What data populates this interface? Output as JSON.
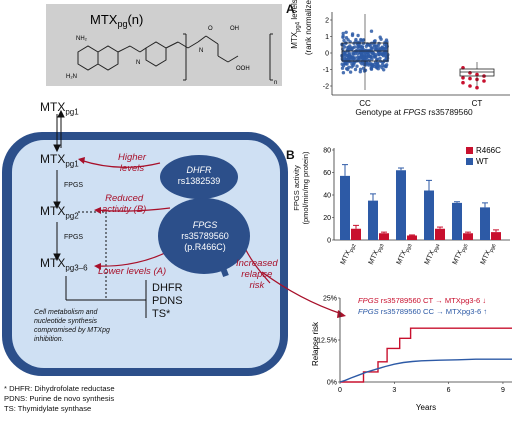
{
  "molecule": {
    "label": "MTX",
    "sub": "pg",
    "suffix": "(n)",
    "subscript_n": "n"
  },
  "pathway": {
    "mtx_outer": "MTX",
    "mtx_outer_sub": "pg1",
    "mtx1": "MTX",
    "mtx1_sub": "pg1",
    "fpgs1": "FPGS",
    "mtx2": "MTX",
    "mtx2_sub": "pg2",
    "fpgs2": "FPGS",
    "mtx3": "MTX",
    "mtx3_sub": "pg3–6",
    "enzymes": [
      "DHFR",
      "PDNS",
      "TS*"
    ],
    "metabolism_note": [
      "Cell metabolism and",
      "nucleotide synthesis",
      "compromised by MTXpg",
      "inhibition."
    ],
    "dhfr_ellipse": [
      "DHFR",
      "rs1382539"
    ],
    "fpgs_ellipse": [
      "FPGS",
      "rs35789560",
      "(p.R466C)"
    ],
    "higher_levels": [
      "Higher",
      "levels"
    ],
    "reduced_activity": [
      "Reduced",
      "activity (B)"
    ],
    "lower_levels": "Lower levels (A)",
    "increased_relapse": [
      "Increased",
      "relapse",
      "risk"
    ]
  },
  "footnotes": [
    "* DHFR: Dihydrofolate reductase",
    "PDNS: Purine de novo synthesis",
    "TS: Thymidylate synthase"
  ],
  "panel_a": {
    "letter": "A",
    "ylabel_main": "MTX",
    "ylabel_sub": "pg4",
    "ylabel_rest": " levels",
    "ylabel_line2": "(rank normalized)",
    "xlabel_prefix": "Genotype at ",
    "xlabel_gene": "FPGS",
    "xlabel_snp": " rs35789560",
    "categories": [
      "CC",
      "CT"
    ],
    "ticks": [
      "2",
      "1",
      "0",
      "-1",
      "-2"
    ],
    "colors": {
      "cc": "#2d5aa6",
      "ct": "#c8102e"
    }
  },
  "panel_b": {
    "letter": "B",
    "ylabel": [
      "FPGS activity",
      "(pmol/min/mg protein)"
    ],
    "ticks": [
      "80",
      "60",
      "40",
      "20",
      "0"
    ],
    "legend": [
      {
        "name": "R466C",
        "color": "#c8102e"
      },
      {
        "name": "WT",
        "color": "#2d5aa6"
      }
    ],
    "categories": [
      {
        "main": "MTX",
        "sub": "pg2"
      },
      {
        "main": "MTX",
        "sub": "pg3"
      },
      {
        "main": "MTX",
        "sub": "pg3"
      },
      {
        "main": "MTX",
        "sub": "pg4"
      },
      {
        "main": "MTX",
        "sub": "pg5"
      },
      {
        "main": "MTX",
        "sub": "pg6"
      }
    ]
  },
  "panel_c": {
    "ylabel": "Relapse risk",
    "xlabel": "Years",
    "yticks": [
      "25%",
      "12.5%",
      "0%"
    ],
    "xticks": [
      "0",
      "3",
      "6",
      "9"
    ],
    "legend_ct": {
      "gene": "FPGS",
      "text": " rs35789560 CT → MTXpg3-6 ↓"
    },
    "legend_cc": {
      "gene": "FPGS",
      "text": " rs35789560 CC → MTXpg3-6 ↑"
    }
  },
  "chart_data": [
    {
      "type": "bar",
      "title": "",
      "ylabel": "FPGS activity (pmol/min/mg protein)",
      "categories": [
        "MTXpg2",
        "MTXpg3",
        "MTXpg3",
        "MTXpg4",
        "MTXpg5",
        "MTXpg6"
      ],
      "ylim": [
        0,
        80
      ],
      "series": [
        {
          "name": "WT",
          "values": [
            57,
            35,
            62,
            44,
            33,
            29
          ],
          "errors": [
            10,
            6,
            2,
            9,
            1,
            4
          ]
        },
        {
          "name": "R466C",
          "values": [
            10,
            6,
            4,
            10,
            6,
            7
          ],
          "errors": [
            3,
            1,
            0.5,
            1.5,
            1,
            2
          ]
        }
      ],
      "legend": "top-right"
    },
    {
      "type": "line",
      "title": "",
      "xlabel": "Years",
      "ylabel": "Relapse risk",
      "xlim": [
        0,
        9.5
      ],
      "ylim": [
        0,
        25
      ],
      "series": [
        {
          "name": "FPGS rs35789560 CT → MTXpg3-6 ↓",
          "x": [
            0,
            1.3,
            1.3,
            2.1,
            2.1,
            2.6,
            2.6,
            3.3,
            3.3,
            3.9,
            3.9,
            9.5
          ],
          "y": [
            0,
            0,
            3,
            3,
            6,
            6,
            10,
            10,
            13,
            13,
            16,
            16
          ]
        },
        {
          "name": "FPGS rs35789560 CC → MTXpg3-6 ↑",
          "x": [
            0,
            0.3,
            0.6,
            1,
            1.5,
            2,
            2.5,
            3,
            3.5,
            4,
            4.5,
            5.5,
            6.5,
            7.5,
            9.5
          ],
          "y": [
            0,
            0.5,
            1.2,
            2,
            3,
            3.8,
            4.6,
            5.3,
            5.8,
            6.1,
            6.3,
            6.5,
            6.6,
            6.8,
            6.8
          ]
        }
      ]
    },
    {
      "type": "scatter",
      "title": "",
      "xlabel": "Genotype at FPGS rs35789560",
      "ylabel": "MTXpg4 levels (rank normalized)",
      "categories": [
        "CC",
        "CT"
      ],
      "ylim": [
        -2.5,
        2.5
      ],
      "series": [
        {
          "name": "CC",
          "median": 0,
          "q1": -0.4,
          "q3": 0.35,
          "min": -2.3,
          "max": 2.3
        },
        {
          "name": "CT",
          "median": -1.55,
          "q1": -1.8,
          "q3": -1.35,
          "min": -2.1,
          "max": -0.9
        }
      ]
    }
  ]
}
